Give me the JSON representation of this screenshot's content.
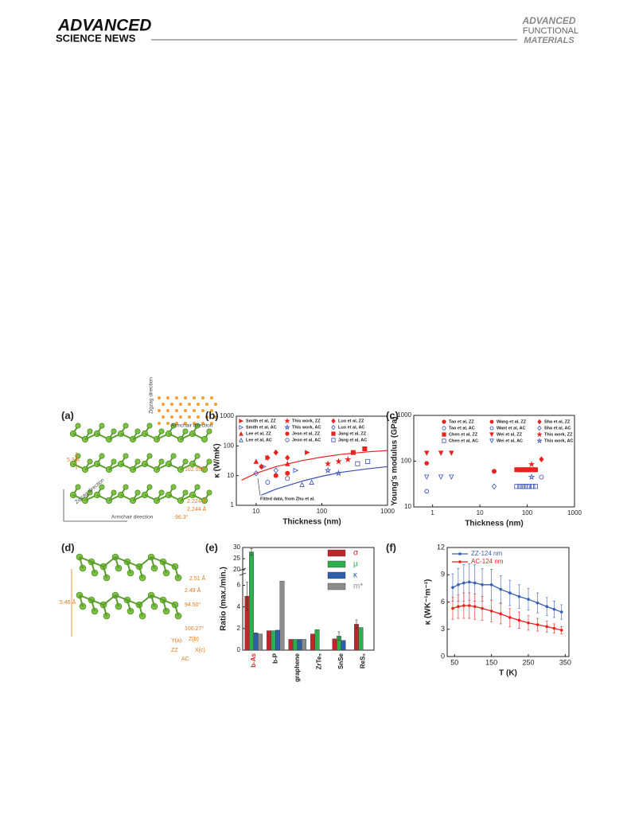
{
  "header": {
    "logo_line1": "ADVANCED",
    "logo_line2": "SCIENCE NEWS",
    "journal_line1": "ADVANCED",
    "journal_line2": "FUNCTIONAL",
    "journal_line3": "MATERIALS"
  },
  "figure": {
    "panels": {
      "a": {
        "label": "(a)",
        "annotations": [
          "Zigzag direction",
          "Armchair direction",
          "5.3 Å",
          "102.095°",
          "2.224 Å",
          "2.244 Å",
          "96.3°",
          "Zigzag direction",
          "Armchair direction"
        ]
      },
      "b": {
        "label": "(b)",
        "chart": {
          "type": "scatter",
          "xlabel": "Thickness (nm)",
          "ylabel": "κ (W/mK)",
          "xscale": "log",
          "yscale": "log",
          "xlim": [
            5,
            1000
          ],
          "ylim": [
            1,
            1000
          ],
          "xticks": [
            10,
            100,
            1000
          ],
          "yticks": [
            1,
            10,
            100,
            1000
          ],
          "annotation": "Fitted data, from Zhu et al.",
          "curves": [
            {
              "color": "#e8231f",
              "x": [
                6,
                10,
                20,
                50,
                100,
                200,
                500,
                1000
              ],
              "y": [
                7,
                12,
                20,
                32,
                42,
                52,
                63,
                70
              ]
            },
            {
              "color": "#3a4fb5",
              "x": [
                12,
                20,
                50,
                100,
                200,
                500,
                1000
              ],
              "y": [
                2.2,
                3.5,
                6.5,
                9.5,
                13,
                17,
                20
              ]
            }
          ],
          "series": [
            {
              "name": "Smith et al, ZZ",
              "color": "#e8231f",
              "marker": "triangle-right",
              "open": false,
              "x": [
                15,
                60
              ],
              "y": [
                40,
                60
              ]
            },
            {
              "name": "Smith et al, AC",
              "color": "#3a4fb5",
              "marker": "triangle-right",
              "open": true,
              "x": [
                13,
                40
              ],
              "y": [
                20,
                15
              ]
            },
            {
              "name": "Lee et al, ZZ",
              "color": "#e8231f",
              "marker": "triangle",
              "open": false,
              "x": [
                10,
                30
              ],
              "y": [
                30,
                25
              ]
            },
            {
              "name": "Lee et al, AC",
              "color": "#3a4fb5",
              "marker": "triangle",
              "open": true,
              "x": [
                50,
                70
              ],
              "y": [
                5,
                6
              ]
            },
            {
              "name": "This work, ZZ",
              "color": "#e8231f",
              "marker": "star",
              "open": false,
              "x": [
                124,
                180,
                250
              ],
              "y": [
                25,
                30,
                35
              ]
            },
            {
              "name": "This work, AC",
              "color": "#3a4fb5",
              "marker": "star",
              "open": true,
              "x": [
                124,
                180
              ],
              "y": [
                15,
                12
              ]
            },
            {
              "name": "Jeon et al, ZZ",
              "color": "#e8231f",
              "marker": "circle",
              "open": false,
              "x": [
                20,
                30
              ],
              "y": [
                10,
                12
              ]
            },
            {
              "name": "Jeon et al, AC",
              "color": "#3a4fb5",
              "marker": "circle",
              "open": true,
              "x": [
                15,
                30
              ],
              "y": [
                6,
                8
              ]
            },
            {
              "name": "Luo et al, ZZ",
              "color": "#e8231f",
              "marker": "diamond",
              "open": false,
              "x": [
                12,
                15,
                20,
                30
              ],
              "y": [
                20,
                40,
                60,
                40
              ]
            },
            {
              "name": "Luo et al, AC",
              "color": "#3a4fb5",
              "marker": "diamond",
              "open": true,
              "x": [
                10,
                20
              ],
              "y": [
                12,
                15
              ]
            },
            {
              "name": "Jang et al, ZZ",
              "color": "#e8231f",
              "marker": "square",
              "open": false,
              "x": [
                300,
                450
              ],
              "y": [
                60,
                80
              ]
            },
            {
              "name": "Jang et al, AC",
              "color": "#3a4fb5",
              "marker": "square",
              "open": true,
              "x": [
                350,
                500
              ],
              "y": [
                25,
                30
              ]
            }
          ]
        }
      },
      "c": {
        "label": "(c)",
        "chart": {
          "type": "scatter",
          "xlabel": "Thickness (nm)",
          "ylabel": "Young's modulus (GPa)",
          "xscale": "log",
          "yscale": "log",
          "xlim": [
            0.4,
            1000
          ],
          "ylim": [
            10,
            1000
          ],
          "xticks": [
            1,
            10,
            100,
            1000
          ],
          "yticks": [
            10,
            100,
            1000
          ],
          "series": [
            {
              "name": "Tao et al, ZZ",
              "color": "#e8231f",
              "marker": "circle",
              "open": false,
              "x": [
                20
              ],
              "y": [
                60
              ]
            },
            {
              "name": "Tao et al, AC",
              "color": "#3a4fb5",
              "marker": "circle",
              "open": true,
              "x": [
                200
              ],
              "y": [
                45
              ]
            },
            {
              "name": "Chen et al, ZZ",
              "color": "#e8231f",
              "marker": "square",
              "open": false,
              "x": [
                60,
                70,
                80,
                90,
                100,
                110,
                130,
                150
              ],
              "y": [
                65,
                65,
                65,
                65,
                65,
                65,
                65,
                65
              ]
            },
            {
              "name": "Chen et al, AC",
              "color": "#3a4fb5",
              "marker": "square",
              "open": true,
              "x": [
                60,
                70,
                80,
                90,
                100,
                110,
                130,
                150
              ],
              "y": [
                28,
                28,
                28,
                28,
                28,
                28,
                28,
                28
              ]
            },
            {
              "name": "Wang et al, ZZ",
              "color": "#e8231f",
              "marker": "hexagon",
              "open": false,
              "x": [
                0.75
              ],
              "y": [
                90
              ]
            },
            {
              "name": "Want et al, AC",
              "color": "#3a4fb5",
              "marker": "hexagon",
              "open": true,
              "x": [
                0.75
              ],
              "y": [
                22
              ]
            },
            {
              "name": "Wei et al, ZZ",
              "color": "#e8231f",
              "marker": "triangle-down",
              "open": false,
              "x": [
                0.75,
                1.5,
                2.5
              ],
              "y": [
                150,
                150,
                150
              ]
            },
            {
              "name": "Wei et al, AC",
              "color": "#3a4fb5",
              "marker": "triangle-down",
              "open": true,
              "x": [
                0.75,
                1.5,
                2.5
              ],
              "y": [
                45,
                45,
                45
              ]
            },
            {
              "name": "Sha et al, ZZ",
              "color": "#e8231f",
              "marker": "diamond",
              "open": false,
              "x": [
                200
              ],
              "y": [
                110
              ]
            },
            {
              "name": "Sha et al, AC",
              "color": "#3a4fb5",
              "marker": "diamond",
              "open": true,
              "x": [
                20
              ],
              "y": [
                28
              ]
            },
            {
              "name": "This work, ZZ",
              "color": "#e8231f",
              "marker": "star",
              "open": false,
              "x": [
                124
              ],
              "y": [
                85
              ]
            },
            {
              "name": "This work, AC",
              "color": "#3a4fb5",
              "marker": "star",
              "open": true,
              "x": [
                124
              ],
              "y": [
                45
              ]
            }
          ]
        }
      },
      "d": {
        "label": "(d)",
        "annotations": [
          "2.51 Å",
          "2.49 Å",
          "5.46 Å",
          "94.50°",
          "100.27°",
          "Y(a)",
          "Z(b)",
          "ZZ",
          "X(c)",
          "AC"
        ]
      },
      "e": {
        "label": "(e)",
        "chart": {
          "type": "bar",
          "ylabel": "Ratio (max./min.)",
          "ylim": [
            0,
            30
          ],
          "axis_break": [
            7,
            20
          ],
          "yticks": [
            0,
            2,
            4,
            6,
            20,
            25,
            30
          ],
          "categories": [
            "b-As",
            "b-P",
            "graphene",
            "ZrTe₅",
            "SnSe",
            "ReS₂"
          ],
          "series": [
            {
              "name": "σ",
              "color": "#c0272d",
              "values": [
                5,
                1.8,
                1,
                1.5,
                1.05,
                2.4
              ],
              "errors": [
                1.3,
                null,
                null,
                null,
                null,
                0.4
              ]
            },
            {
              "name": "μ",
              "color": "#2fae4e",
              "values": [
                28,
                1.8,
                1,
                1.9,
                1.3,
                2.1
              ],
              "errors": [
                1.5,
                null,
                null,
                null,
                0.4,
                null
              ]
            },
            {
              "name": "κ",
              "color": "#2d5fa8",
              "values": [
                1.6,
                1.85,
                1,
                null,
                0.9,
                null
              ],
              "errors": [
                null,
                null,
                null,
                null,
                null,
                null
              ]
            },
            {
              "name": "m*",
              "color": "#8c8c8c",
              "values": [
                1.5,
                6.4,
                1,
                null,
                null,
                null
              ],
              "errors": [
                null,
                null,
                null,
                null,
                null,
                null
              ]
            }
          ]
        }
      },
      "f": {
        "label": "(f)",
        "chart": {
          "type": "line",
          "xlabel": "T (K)",
          "ylabel": "κ (WK⁻¹m⁻¹)",
          "xlim": [
            30,
            360
          ],
          "ylim": [
            0,
            12
          ],
          "xticks": [
            50,
            150,
            250,
            350
          ],
          "yticks": [
            0,
            3,
            6,
            9,
            12
          ],
          "x": [
            45,
            60,
            75,
            90,
            105,
            125,
            150,
            175,
            200,
            225,
            250,
            275,
            300,
            320,
            340
          ],
          "series": [
            {
              "name": "ZZ-124 nm",
              "color": "#3a5fb0",
              "values": [
                7.6,
                7.9,
                8.1,
                8.2,
                8.1,
                7.9,
                7.9,
                7.4,
                7.0,
                6.6,
                6.3,
                5.9,
                5.5,
                5.2,
                4.9
              ],
              "errors": [
                1.5,
                1.8,
                2,
                2,
                2,
                1.8,
                1.7,
                1.5,
                1.4,
                1.3,
                1.2,
                1.1,
                1,
                0.9,
                0.8
              ]
            },
            {
              "name": "AC-124 nm",
              "color": "#e8231f",
              "values": [
                5.3,
                5.5,
                5.6,
                5.6,
                5.5,
                5.3,
                5.0,
                4.7,
                4.3,
                4.0,
                3.7,
                3.5,
                3.3,
                3.1,
                2.9
              ],
              "errors": [
                1.2,
                1.3,
                1.4,
                1.4,
                1.4,
                1.3,
                1.2,
                1.1,
                1,
                0.9,
                0.8,
                0.7,
                0.6,
                0.5,
                0.4
              ]
            }
          ]
        }
      }
    }
  }
}
